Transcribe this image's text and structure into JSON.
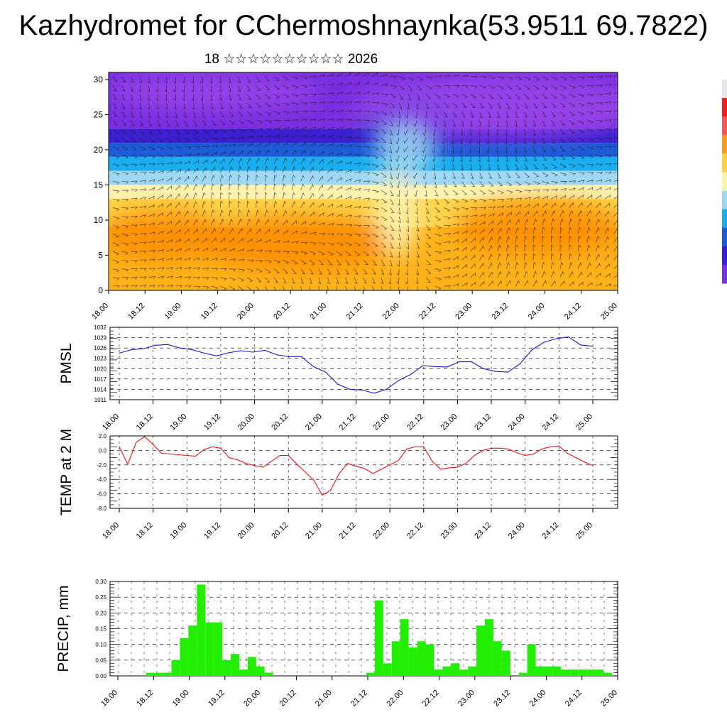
{
  "title": "Kazhydromet for CChermoshnaynka(53.9511 69.7822)",
  "subtitle": "18 ☆☆☆☆☆☆☆☆☆☆ 2026",
  "chart_data": [
    {
      "id": "cross-section",
      "type": "heatmap",
      "title": "",
      "x_ticks": [
        "18.00",
        "18.12",
        "19.00",
        "19.12",
        "20.00",
        "20.12",
        "21.00",
        "21.12",
        "22.00",
        "22.12",
        "23.00",
        "23.12",
        "24.00",
        "24.12",
        "25.00"
      ],
      "y_ticks": [
        "0",
        "5",
        "10",
        "15",
        "20",
        "25",
        "30"
      ],
      "ylim": [
        0,
        31
      ],
      "colorscale": [
        "#ff8c00",
        "#ffb21a",
        "#ffd54a",
        "#fff3b0",
        "#9fd8f5",
        "#1aaeee",
        "#1e5bd6",
        "#3b1fd0",
        "#7a2fe0",
        "#9a44ea"
      ],
      "colorbar_colors": [
        "#e8e8e8",
        "#ff1a1a",
        "#ff5555",
        "#ffa020",
        "#ffd24a",
        "#fff3b0",
        "#9fd8f5",
        "#1aaeee",
        "#1e5bd6",
        "#3b1fd0",
        "#7a2fe0"
      ],
      "legend_position": "right"
    },
    {
      "id": "pmsl",
      "type": "line",
      "ylabel": "PMSL",
      "ylim": [
        1011,
        1032
      ],
      "y_ticks": [
        "1011",
        "1014",
        "1017",
        "1020",
        "1023",
        "1026",
        "1029",
        "1032"
      ],
      "x_ticks": [
        "18.00",
        "18.12",
        "19.00",
        "19.12",
        "20.00",
        "20.12",
        "21.00",
        "21.12",
        "22.00",
        "22.12",
        "23.00",
        "23.12",
        "24.00",
        "24.12",
        "25.00"
      ],
      "color": "#1a1ad0",
      "values": [
        1024.5,
        1025.5,
        1025.8,
        1026.8,
        1027,
        1026,
        1025.5,
        1024.5,
        1023.7,
        1024.6,
        1025.2,
        1024.8,
        1025.3,
        1024,
        1023.5,
        1023.5,
        1020.6,
        1019,
        1015.5,
        1014,
        1013.8,
        1012.9,
        1014,
        1016.6,
        1018.3,
        1020.9,
        1020.6,
        1020.5,
        1022,
        1022,
        1020,
        1019.2,
        1019,
        1021.4,
        1025.5,
        1027.7,
        1028.7,
        1029.2,
        1026.9,
        1026.5
      ]
    },
    {
      "id": "temp",
      "type": "line",
      "ylabel": "TEMP at 2 M",
      "ylim": [
        -8,
        2
      ],
      "y_ticks": [
        "2.0",
        "0.0",
        "-2.0",
        "-4.0",
        "-6.0",
        "-8.0"
      ],
      "x_ticks": [
        "18.00",
        "18.12",
        "19.00",
        "19.12",
        "20.00",
        "20.12",
        "21.00",
        "21.12",
        "22.00",
        "22.12",
        "23.00",
        "23.12",
        "24.00",
        "24.12",
        "25.00"
      ],
      "color": "#e01a1a",
      "values": [
        0.5,
        -1.9,
        1.1,
        1.9,
        0.8,
        -0.4,
        -0.5,
        -0.6,
        -0.7,
        -0.8,
        0.1,
        0.5,
        0.3,
        -1.0,
        -1.3,
        -1.8,
        -2.1,
        -2.3,
        -1.5,
        -0.7,
        -0.7,
        -1.9,
        -3.0,
        -4.1,
        -6.2,
        -5.5,
        -3.2,
        -1.8,
        -2.2,
        -2.5,
        -3.2,
        -2.6,
        -2.0,
        -1.4,
        0.2,
        0.5,
        0.5,
        -1.5,
        -2.6,
        -2.4,
        -2.3,
        -1.8,
        -0.7,
        0.0,
        0.3,
        0.3,
        0.2,
        -0.3,
        -0.7,
        -0.5,
        0.2,
        0.5,
        0.6,
        -0.4,
        -1.0,
        -1.6,
        -2.1
      ]
    },
    {
      "id": "precip",
      "type": "bar",
      "ylabel": "PRECIP, mm",
      "ylim": [
        0,
        0.3
      ],
      "y_ticks": [
        "0.00",
        "0.05",
        "0.10",
        "0.15",
        "0.20",
        "0.25",
        "0.30"
      ],
      "x_ticks": [
        "18.00",
        "18.12",
        "19.00",
        "19.12",
        "20.00",
        "20.12",
        "21.00",
        "21.12",
        "22.00",
        "22.12",
        "23.00",
        "23.12",
        "24.00",
        "24.12",
        "25.00"
      ],
      "color": "#22ee00",
      "values": [
        0,
        0,
        0,
        0,
        0.01,
        0.01,
        0.01,
        0.05,
        0.12,
        0.16,
        0.29,
        0.17,
        0.17,
        0.05,
        0.07,
        0.02,
        0.06,
        0.03,
        0.01,
        0,
        0,
        0,
        0,
        0,
        0,
        0,
        0,
        0,
        0,
        0,
        0.01,
        0.24,
        0.04,
        0.11,
        0.18,
        0.09,
        0.11,
        0.1,
        0.02,
        0.03,
        0.04,
        0.02,
        0.03,
        0.16,
        0.18,
        0.11,
        0.08,
        0,
        0.01,
        0.1,
        0.03,
        0.03,
        0.03,
        0.02,
        0.02,
        0.02,
        0.02,
        0.02,
        0.01
      ]
    }
  ]
}
